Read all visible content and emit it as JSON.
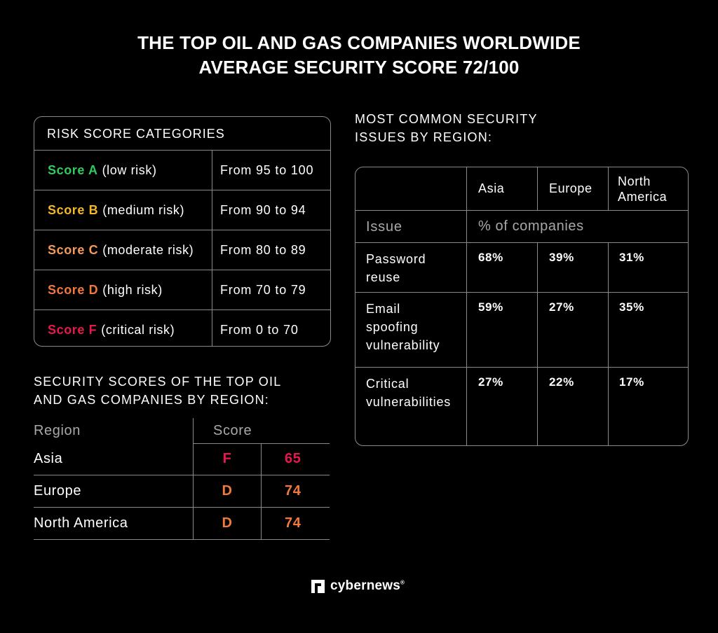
{
  "title": {
    "line1": "THE TOP OIL AND GAS COMPANIES WORLDWIDE",
    "line2": "AVERAGE SECURITY SCORE 72/100"
  },
  "risk_categories": {
    "heading": "RISK SCORE CATEGORIES",
    "rows": [
      {
        "grade": "Score A",
        "risk": "(low risk)",
        "range": "From 95 to 100",
        "color": "#2ecc5f"
      },
      {
        "grade": "Score B",
        "risk": "(medium risk)",
        "range": "From 90 to 94",
        "color": "#f5b72a"
      },
      {
        "grade": "Score C",
        "risk": "(moderate risk)",
        "range": "From 80 to 89",
        "color": "#f59a5a"
      },
      {
        "grade": "Score D",
        "risk": "(high risk)",
        "range": "From 70 to 79",
        "color": "#f2783c"
      },
      {
        "grade": "Score F",
        "risk": "(critical risk)",
        "range": "From 0 to 70",
        "color": "#e8174d"
      }
    ]
  },
  "region_scores": {
    "heading_line1": "SECURITY SCORES OF THE TOP OIL",
    "heading_line2": "AND GAS COMPANIES BY REGION:",
    "col_region": "Region",
    "col_score": "Score",
    "rows": [
      {
        "region": "Asia",
        "grade": "F",
        "score": "65",
        "color": "#e8174d"
      },
      {
        "region": "Europe",
        "grade": "D",
        "score": "74",
        "color": "#f2783c"
      },
      {
        "region": "North America",
        "grade": "D",
        "score": "74",
        "color": "#f2783c"
      }
    ]
  },
  "issues": {
    "heading_line1": "MOST COMMON SECURITY",
    "heading_line2": "ISSUES BY REGION:",
    "columns": [
      "Asia",
      "Europe",
      "North America"
    ],
    "north_america_line1": "North",
    "north_america_line2": "America",
    "sub_label": "Issue",
    "sub_value": "% of companies",
    "rows": [
      {
        "issue_lines": [
          "Password",
          "reuse"
        ],
        "asia": "68%",
        "europe": "39%",
        "na": "31%"
      },
      {
        "issue_lines": [
          "Email",
          "spoofing",
          "vulnerability"
        ],
        "asia": "59%",
        "europe": "27%",
        "na": "35%"
      },
      {
        "issue_lines": [
          "Critical",
          "vulnerabilities"
        ],
        "asia": "27%",
        "europe": "22%",
        "na": "17%"
      }
    ]
  },
  "logo": {
    "text": "cybernews",
    "reg": "®",
    "icon": "cybernews-logo-icon"
  }
}
